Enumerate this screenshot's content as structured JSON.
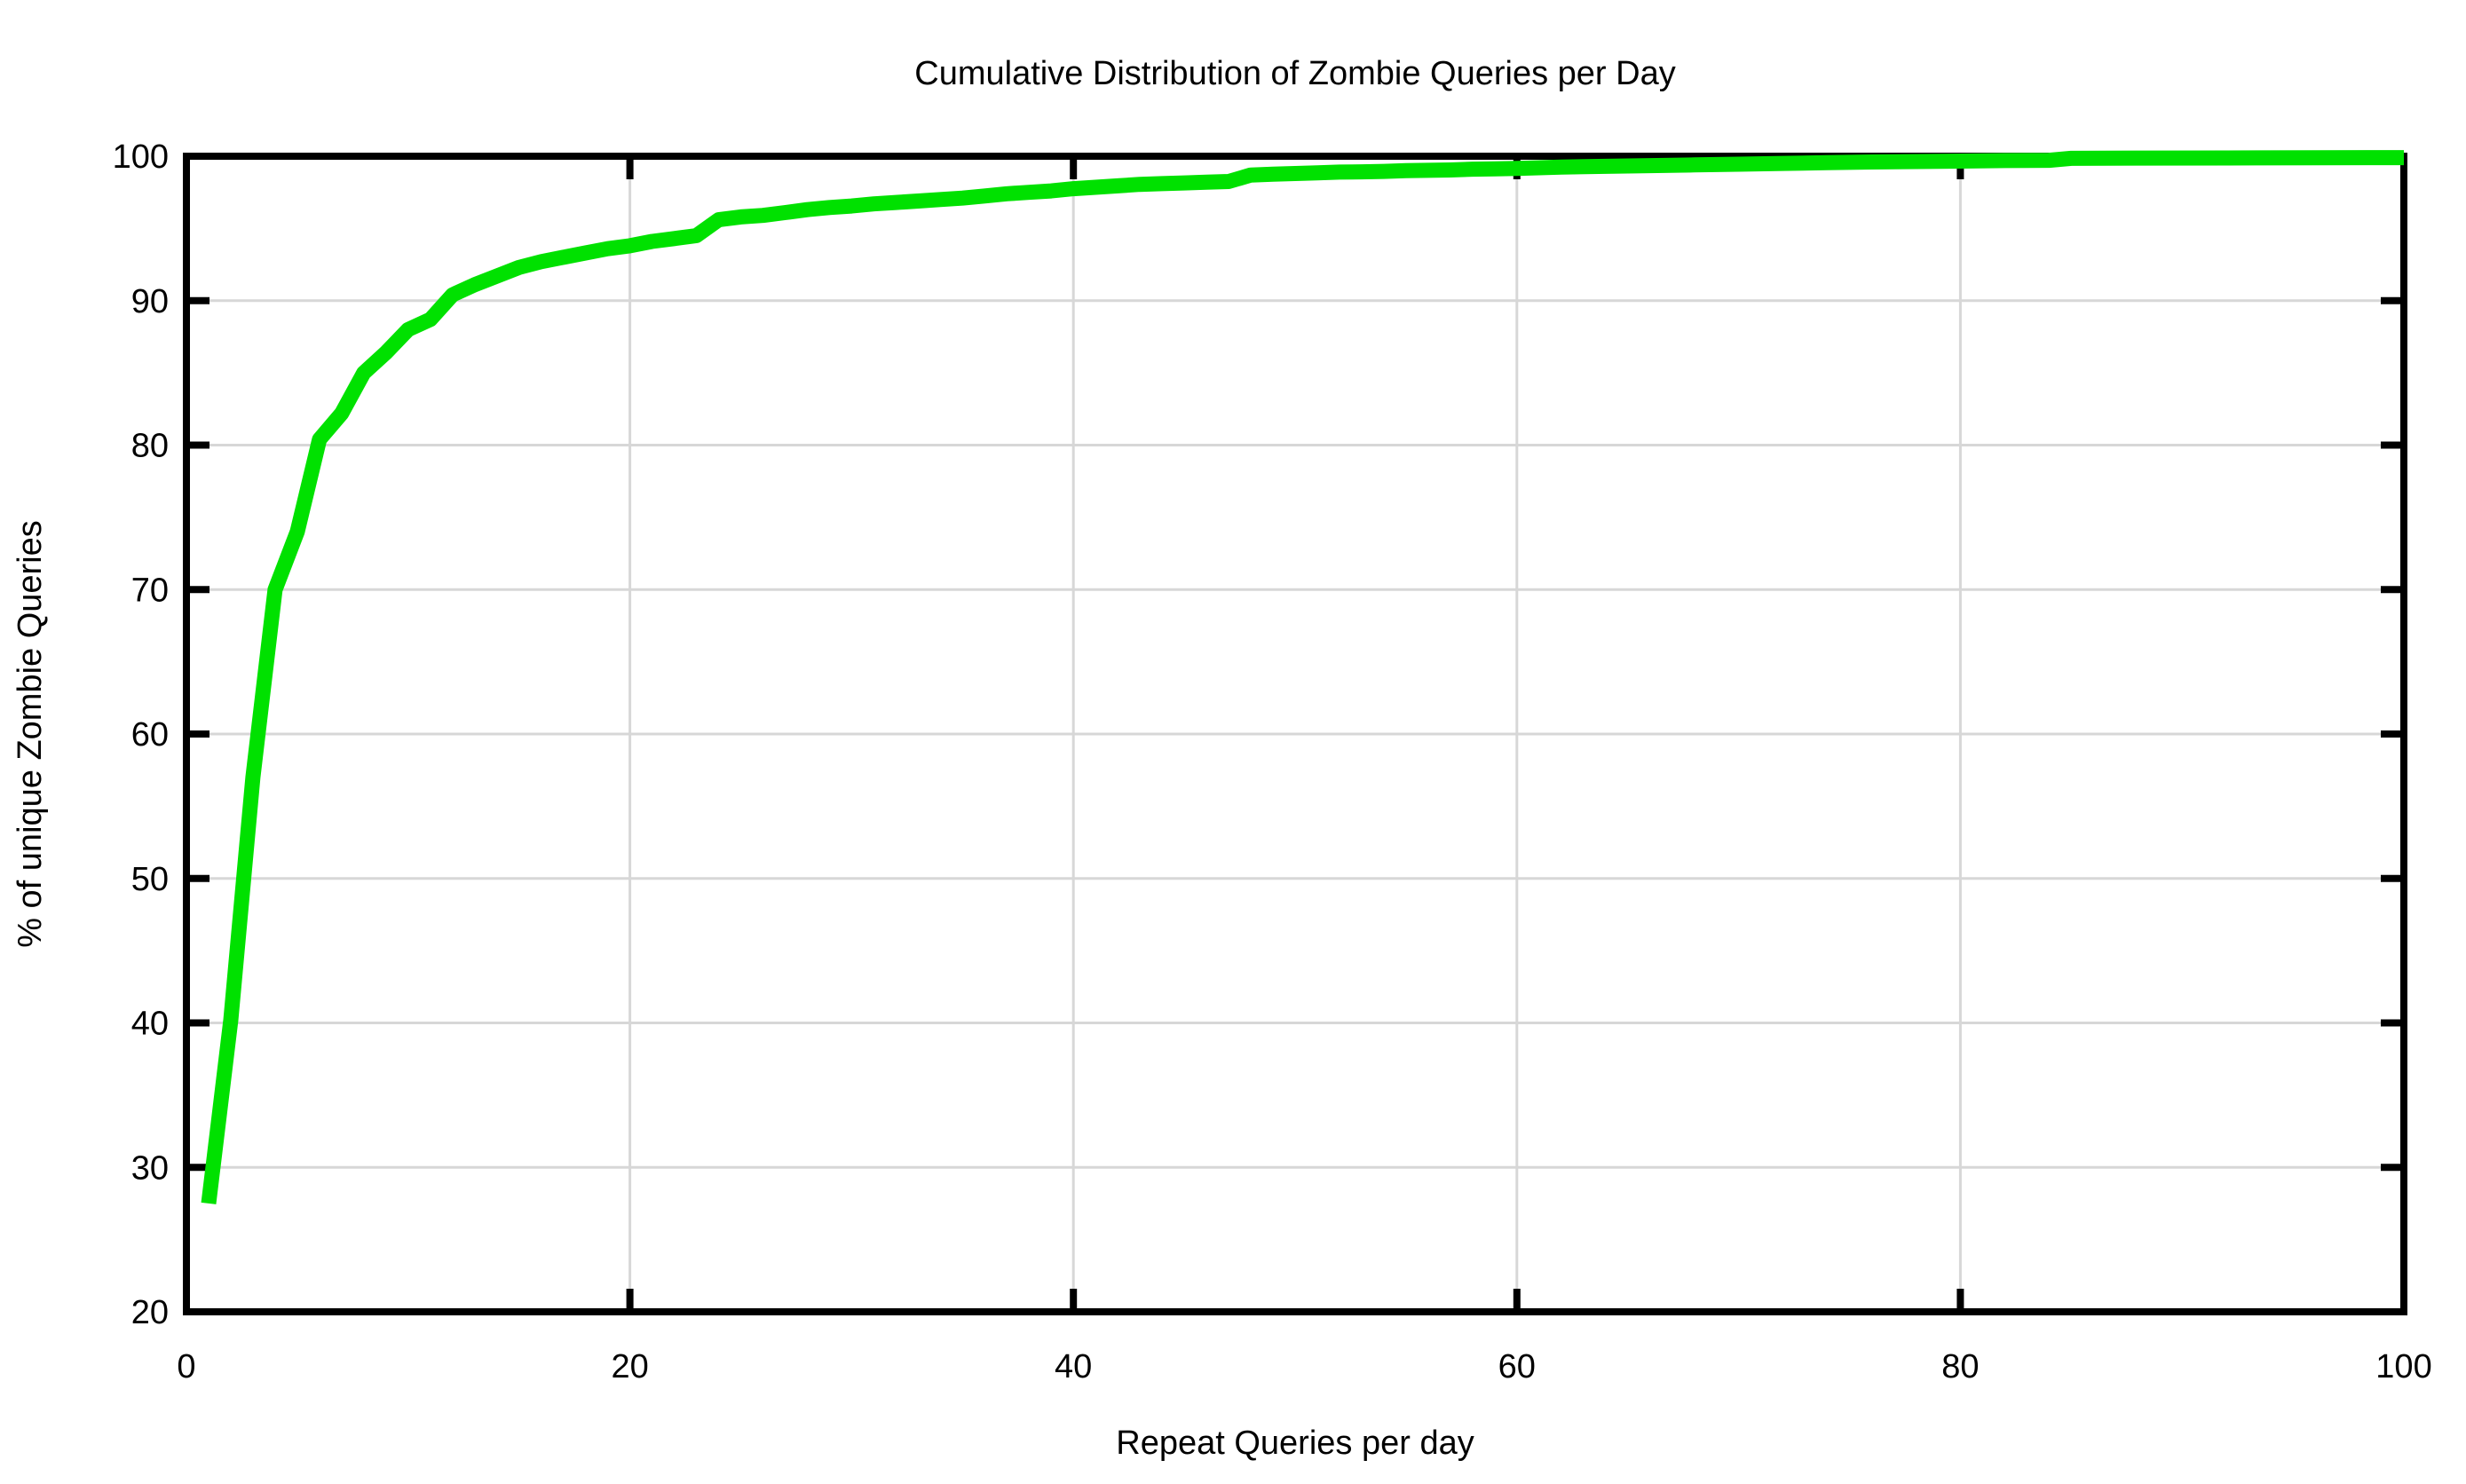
{
  "chart_data": {
    "type": "line",
    "title": "Cumulative Distribution of Zombie Queries per Day",
    "xlabel": "Repeat Queries per day",
    "ylabel": "% of unique Zombie Queries",
    "xlim": [
      0,
      100
    ],
    "ylim": [
      20,
      100
    ],
    "xticks": [
      0,
      20,
      40,
      60,
      80,
      100
    ],
    "yticks": [
      20,
      30,
      40,
      50,
      60,
      70,
      80,
      90,
      100
    ],
    "grid": true,
    "legend": "none",
    "series": [
      {
        "points": [
          [
            1,
            27.5
          ],
          [
            2,
            40.2
          ],
          [
            3,
            57
          ],
          [
            4,
            70
          ],
          [
            5,
            74
          ],
          [
            6,
            80.4
          ],
          [
            7,
            82.2
          ],
          [
            8,
            85
          ],
          [
            9,
            86.4
          ],
          [
            10,
            88
          ],
          [
            11,
            88.7
          ],
          [
            12,
            90.4
          ],
          [
            13,
            91.1
          ],
          [
            14,
            91.7
          ],
          [
            15,
            92.3
          ],
          [
            16,
            92.7
          ],
          [
            17,
            93
          ],
          [
            18,
            93.3
          ],
          [
            19,
            93.6
          ],
          [
            20,
            93.8
          ],
          [
            21,
            94.1
          ],
          [
            22,
            94.3
          ],
          [
            23,
            94.5
          ],
          [
            24,
            95.6
          ],
          [
            25,
            95.8
          ],
          [
            26,
            95.9
          ],
          [
            27,
            96.1
          ],
          [
            28,
            96.3
          ],
          [
            29,
            96.45
          ],
          [
            30,
            96.55
          ],
          [
            31,
            96.7
          ],
          [
            32,
            96.8
          ],
          [
            33,
            96.9
          ],
          [
            34,
            97
          ],
          [
            35,
            97.1
          ],
          [
            36,
            97.25
          ],
          [
            37,
            97.4
          ],
          [
            38,
            97.5
          ],
          [
            39,
            97.6
          ],
          [
            40,
            97.75
          ],
          [
            41,
            97.85
          ],
          [
            42,
            97.95
          ],
          [
            43,
            98.05
          ],
          [
            44,
            98.1
          ],
          [
            45,
            98.15
          ],
          [
            46,
            98.2
          ],
          [
            47,
            98.25
          ],
          [
            48,
            98.7
          ],
          [
            49,
            98.75
          ],
          [
            50,
            98.8
          ],
          [
            51,
            98.85
          ],
          [
            52,
            98.9
          ],
          [
            53,
            98.92
          ],
          [
            54,
            98.95
          ],
          [
            55,
            99
          ],
          [
            56,
            99.02
          ],
          [
            57,
            99.05
          ],
          [
            58,
            99.1
          ],
          [
            59,
            99.12
          ],
          [
            60,
            99.15
          ],
          [
            62,
            99.25
          ],
          [
            64,
            99.3
          ],
          [
            66,
            99.35
          ],
          [
            68,
            99.4
          ],
          [
            70,
            99.45
          ],
          [
            72,
            99.5
          ],
          [
            74,
            99.55
          ],
          [
            76,
            99.6
          ],
          [
            78,
            99.63
          ],
          [
            80,
            99.66
          ],
          [
            82,
            99.7
          ],
          [
            84,
            99.72
          ],
          [
            85,
            99.85
          ],
          [
            88,
            99.87
          ],
          [
            92,
            99.88
          ],
          [
            96,
            99.89
          ],
          [
            100,
            99.9
          ]
        ]
      }
    ],
    "colors": {
      "line": "#00e100",
      "grid": "#d7d7d7",
      "axis": "#000000",
      "background": "#ffffff",
      "text": "#000000"
    }
  }
}
